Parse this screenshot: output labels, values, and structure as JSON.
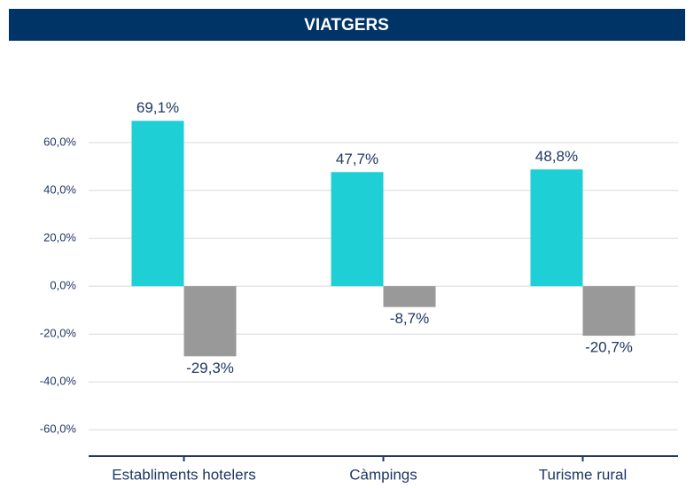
{
  "chart_data": {
    "type": "bar",
    "title": "VIATGERS",
    "categories": [
      "Establiments hotelers",
      "Càmpings",
      "Turisme rural"
    ],
    "series": [
      {
        "color": "#1ecfd6",
        "values": [
          69.1,
          47.7,
          48.8
        ],
        "value_labels": [
          "69,1%",
          "47,7%",
          "48,8%"
        ]
      },
      {
        "color": "#999999",
        "values": [
          -29.3,
          -8.7,
          -20.7
        ],
        "value_labels": [
          "-29,3%",
          "-8,7%",
          "-20,7%"
        ]
      }
    ],
    "ylim": [
      -71,
      80
    ],
    "yticks": [
      {
        "value": -60,
        "label": "-60,0%"
      },
      {
        "value": -40,
        "label": "-40,0%"
      },
      {
        "value": -20,
        "label": "-20,0%"
      },
      {
        "value": 0,
        "label": "0,0%"
      },
      {
        "value": 20,
        "label": "20,0%"
      },
      {
        "value": 40,
        "label": "40,0%"
      },
      {
        "value": 60,
        "label": "60,0%"
      }
    ],
    "grid": true
  }
}
